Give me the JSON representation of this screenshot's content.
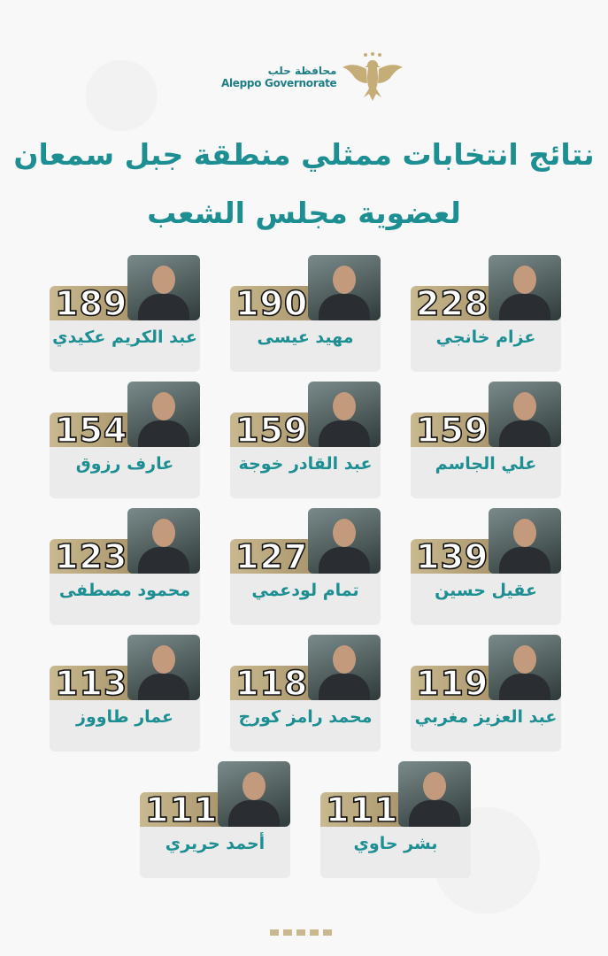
{
  "header": {
    "logo_ar": "محافظة حلب",
    "logo_en": "Aleppo Governorate",
    "title_line1": "نتائج انتخابات ممثلي منطقة جبل سمعان",
    "title_line2": "لعضوية مجلس الشعب"
  },
  "colors": {
    "accent": "#1d8f93",
    "gold": "#b8a47c",
    "card": "#ebebeb"
  },
  "candidates": [
    {
      "name": "عزام خانجي",
      "votes": "228"
    },
    {
      "name": "مهيد عيسى",
      "votes": "190"
    },
    {
      "name": "عبد الكريم عكيدي",
      "votes": "189"
    },
    {
      "name": "علي الجاسم",
      "votes": "159"
    },
    {
      "name": "عبد القادر خوجة",
      "votes": "159"
    },
    {
      "name": "عارف رزوق",
      "votes": "154"
    },
    {
      "name": "عقيل حسين",
      "votes": "139"
    },
    {
      "name": "تمام لودعمي",
      "votes": "127"
    },
    {
      "name": "محمود مصطفى",
      "votes": "123"
    },
    {
      "name": "عبد العزيز مغربي",
      "votes": "119"
    },
    {
      "name": "محمد رامز كورج",
      "votes": "118"
    },
    {
      "name": "عمار طاووز",
      "votes": "113"
    },
    {
      "name": "بشر حاوي",
      "votes": "111"
    },
    {
      "name": "أحمد حريري",
      "votes": "111"
    }
  ]
}
